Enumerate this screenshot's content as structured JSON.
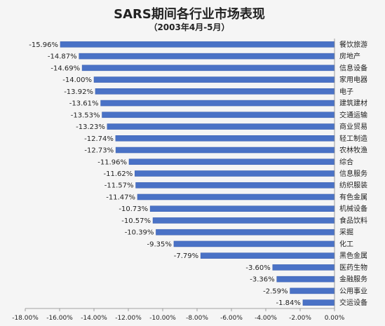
{
  "chart_data": {
    "type": "bar",
    "orientation": "horizontal",
    "title": "SARS期间各行业市场表现",
    "subtitle": "（2003年4月-5月）",
    "categories": [
      "餐饮旅游",
      "房地产",
      "信息设备",
      "家用电器",
      "电子",
      "建筑建材",
      "交通运输",
      "商业贸易",
      "轻工制造",
      "农林牧渔",
      "综合",
      "信息服务",
      "纺织服装",
      "有色金属",
      "机械设备",
      "食品饮料",
      "采掘",
      "化工",
      "黑色金属",
      "医药生物",
      "金融服务",
      "公用事业",
      "交运设备"
    ],
    "values": [
      -15.96,
      -14.87,
      -14.69,
      -14.0,
      -13.92,
      -13.61,
      -13.53,
      -13.23,
      -12.74,
      -12.73,
      -11.96,
      -11.62,
      -11.57,
      -11.47,
      -10.73,
      -10.57,
      -10.39,
      -9.35,
      -7.79,
      -3.6,
      -3.36,
      -2.59,
      -1.84
    ],
    "value_labels": [
      "-15.96%",
      "-14.87%",
      "-14.69%",
      "-14.00%",
      "-13.92%",
      "-13.61%",
      "-13.53%",
      "-13.23%",
      "-12.74%",
      "-12.73%",
      "-11.96%",
      "-11.62%",
      "-11.57%",
      "-11.47%",
      "-10.73%",
      "-10.57%",
      "-10.39%",
      "-9.35%",
      "-7.79%",
      "-3.60%",
      "-3.36%",
      "-2.59%",
      "-1.84%"
    ],
    "xlim": [
      -18,
      0
    ],
    "x_ticks": [
      -18,
      -16,
      -14,
      -12,
      -10,
      -8,
      -6,
      -4,
      -2,
      0
    ],
    "x_tick_labels": [
      "-18.00%",
      "-16.00%",
      "-14.00%",
      "-12.00%",
      "-10.00%",
      "-8.00%",
      "-6.00%",
      "-4.00%",
      "-2.00%",
      "0.00%"
    ],
    "grid": false,
    "legend": "none",
    "colors": {
      "bar": "#4a72c6",
      "bar_edge": "#3b5fae",
      "background": "#f5f5f5",
      "text": "#222222"
    }
  }
}
